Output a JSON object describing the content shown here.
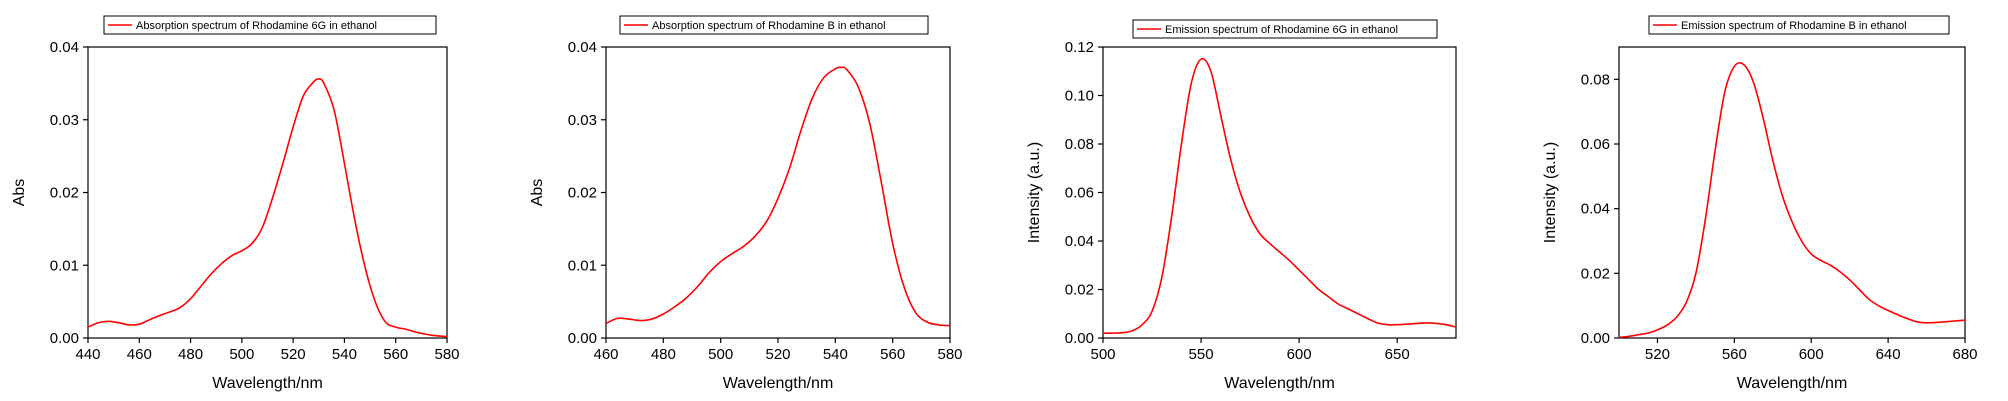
{
  "chart_data": [
    {
      "type": "line",
      "legend": "Absorption spectrum of Rhodamine 6G in ethanol",
      "xlabel": "Wavelength/nm",
      "ylabel": "Abs",
      "xlim": [
        440,
        580
      ],
      "ylim": [
        0,
        0.04
      ],
      "xticks": [
        440,
        460,
        480,
        500,
        520,
        540,
        560,
        580
      ],
      "yticks": [
        0.0,
        0.01,
        0.02,
        0.03,
        0.04
      ],
      "xtick_labels": [
        "440",
        "460",
        "480",
        "500",
        "520",
        "540",
        "560",
        "580"
      ],
      "ytick_labels": [
        "0.00",
        "0.01",
        "0.02",
        "0.03",
        "0.04"
      ],
      "series": [
        {
          "x": [
            440,
            444,
            448,
            452,
            456,
            460,
            464,
            468,
            472,
            476,
            480,
            484,
            488,
            492,
            496,
            500,
            504,
            508,
            512,
            516,
            520,
            524,
            528,
            530,
            532,
            536,
            540,
            544,
            548,
            552,
            556,
            560,
            564,
            568,
            572,
            576,
            580
          ],
          "y": [
            0.0015,
            0.0021,
            0.0023,
            0.0021,
            0.0018,
            0.0019,
            0.0025,
            0.0031,
            0.0036,
            0.0042,
            0.0054,
            0.0071,
            0.0088,
            0.0102,
            0.0113,
            0.012,
            0.013,
            0.0152,
            0.0193,
            0.024,
            0.029,
            0.0333,
            0.0352,
            0.0356,
            0.035,
            0.0313,
            0.024,
            0.0163,
            0.0098,
            0.005,
            0.0022,
            0.0015,
            0.0012,
            0.0008,
            0.0005,
            0.0003,
            0.0002
          ]
        }
      ]
    },
    {
      "type": "line",
      "legend": "Absorption spectrum of Rhodamine B in ethanol",
      "xlabel": "Wavelength/nm",
      "ylabel": "Abs",
      "xlim": [
        460,
        580
      ],
      "ylim": [
        0,
        0.04
      ],
      "xticks": [
        460,
        480,
        500,
        520,
        540,
        560,
        580
      ],
      "yticks": [
        0.0,
        0.01,
        0.02,
        0.03,
        0.04
      ],
      "xtick_labels": [
        "460",
        "480",
        "500",
        "520",
        "540",
        "560",
        "580"
      ],
      "ytick_labels": [
        "0.00",
        "0.01",
        "0.02",
        "0.03",
        "0.04"
      ],
      "series": [
        {
          "x": [
            460,
            464,
            468,
            472,
            476,
            480,
            484,
            488,
            492,
            496,
            500,
            504,
            508,
            512,
            516,
            520,
            524,
            528,
            532,
            536,
            540,
            542,
            544,
            548,
            552,
            556,
            560,
            564,
            568,
            572,
            576,
            580
          ],
          "y": [
            0.002,
            0.0027,
            0.0026,
            0.0024,
            0.0026,
            0.0033,
            0.0043,
            0.0055,
            0.0071,
            0.009,
            0.0105,
            0.0116,
            0.0126,
            0.014,
            0.016,
            0.0192,
            0.0233,
            0.0285,
            0.033,
            0.0358,
            0.037,
            0.0372,
            0.0369,
            0.0345,
            0.0295,
            0.0215,
            0.013,
            0.007,
            0.0035,
            0.0022,
            0.0018,
            0.0017
          ]
        }
      ]
    },
    {
      "type": "line",
      "legend": "Emission spectrum of Rhodamine 6G in ethanol",
      "xlabel": "Wavelength/nm",
      "ylabel": "Intensity (a.u.)",
      "xlim": [
        500,
        680
      ],
      "ylim": [
        0,
        0.12
      ],
      "xticks": [
        500,
        550,
        600,
        650
      ],
      "yticks": [
        0.0,
        0.02,
        0.04,
        0.06,
        0.08,
        0.1,
        0.12
      ],
      "xtick_labels": [
        "500",
        "550",
        "600",
        "650"
      ],
      "ytick_labels": [
        "0.00",
        "0.02",
        "0.04",
        "0.06",
        "0.08",
        "0.10",
        "0.12"
      ],
      "series": [
        {
          "x": [
            500,
            505,
            510,
            515,
            520,
            525,
            530,
            535,
            540,
            545,
            550,
            555,
            560,
            565,
            570,
            575,
            580,
            585,
            590,
            595,
            600,
            605,
            610,
            615,
            620,
            625,
            630,
            635,
            640,
            645,
            650,
            655,
            660,
            665,
            670,
            675,
            680
          ],
          "y": [
            0.002,
            0.002,
            0.0022,
            0.003,
            0.0055,
            0.011,
            0.025,
            0.05,
            0.08,
            0.105,
            0.115,
            0.11,
            0.092,
            0.074,
            0.06,
            0.05,
            0.043,
            0.039,
            0.0355,
            0.032,
            0.028,
            0.024,
            0.02,
            0.017,
            0.014,
            0.012,
            0.01,
            0.008,
            0.0062,
            0.0055,
            0.0055,
            0.0057,
            0.006,
            0.0062,
            0.006,
            0.0055,
            0.0045
          ]
        }
      ]
    },
    {
      "type": "line",
      "legend": "Emission spectrum of Rhodamine B in ethanol",
      "xlabel": "Wavelength/nm",
      "ylabel": "Intensity (a.u.)",
      "xlim": [
        500,
        680
      ],
      "ylim": [
        0,
        0.09
      ],
      "xticks": [
        520,
        560,
        600,
        640,
        680
      ],
      "yticks": [
        0.0,
        0.02,
        0.04,
        0.06,
        0.08
      ],
      "xtick_labels": [
        "520",
        "560",
        "600",
        "640",
        "680"
      ],
      "ytick_labels": [
        "0.00",
        "0.02",
        "0.04",
        "0.06",
        "0.08"
      ],
      "series": [
        {
          "x": [
            500,
            505,
            510,
            515,
            520,
            525,
            530,
            535,
            540,
            545,
            550,
            555,
            560,
            565,
            570,
            575,
            580,
            585,
            590,
            595,
            600,
            605,
            610,
            615,
            620,
            625,
            630,
            635,
            640,
            645,
            650,
            655,
            660,
            665,
            670,
            675,
            680
          ],
          "y": [
            0.0002,
            0.0005,
            0.001,
            0.0015,
            0.0025,
            0.004,
            0.0065,
            0.011,
            0.02,
            0.037,
            0.058,
            0.076,
            0.084,
            0.0845,
            0.079,
            0.068,
            0.055,
            0.044,
            0.036,
            0.03,
            0.026,
            0.024,
            0.0225,
            0.0205,
            0.018,
            0.015,
            0.012,
            0.01,
            0.0085,
            0.0072,
            0.006,
            0.005,
            0.0047,
            0.0048,
            0.005,
            0.0053,
            0.0055
          ]
        }
      ]
    }
  ],
  "colors": {
    "line": "#ff0000",
    "axis": "#000000",
    "background": "#ffffff"
  }
}
